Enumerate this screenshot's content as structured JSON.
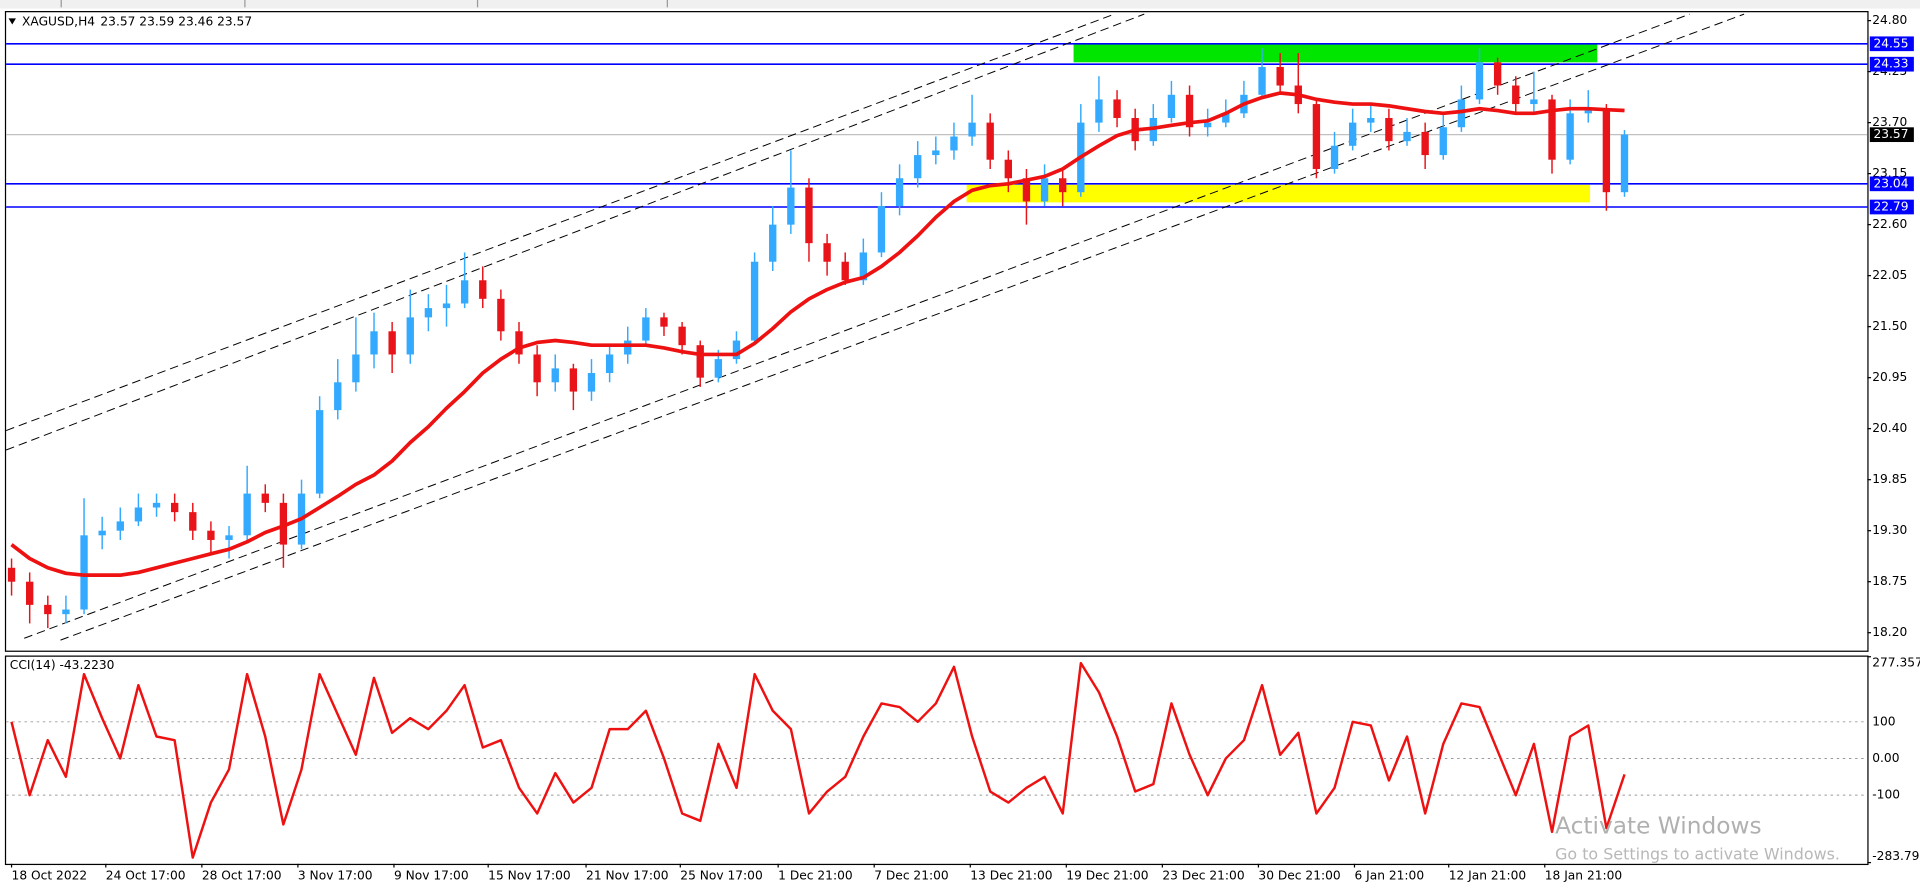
{
  "chart_data": [
    {
      "type": "candlestick",
      "title": "XAGUSD,H4",
      "subtitle": "23.57 23.59 23.46 23.57",
      "up_color": "#33aaff",
      "down_color": "#e8141a",
      "xlim": [
        -0.3,
        102.4
      ],
      "ylim": [
        18.02,
        24.89
      ],
      "yticks": [
        {
          "value": 24.8,
          "label": "24.80"
        },
        24.25,
        {
          "value": 23.7,
          "label": "23.70"
        },
        23.15,
        {
          "value": 22.6,
          "label": "22.60"
        },
        22.05,
        {
          "value": 21.5,
          "label": "21.50"
        },
        20.95,
        {
          "value": 20.4,
          "label": "20.40"
        },
        19.85,
        {
          "value": 19.3,
          "label": "19.30"
        },
        18.75,
        {
          "value": 18.2,
          "label": "18.20"
        }
      ],
      "open": [
        18.9,
        18.75,
        18.5,
        18.4,
        18.45,
        19.25,
        19.3,
        19.4,
        19.55,
        19.6,
        19.5,
        19.3,
        19.2,
        19.25,
        19.7,
        19.6,
        19.15,
        19.7,
        20.6,
        20.9,
        21.2,
        21.45,
        21.2,
        21.6,
        21.7,
        21.75,
        22.0,
        21.8,
        21.45,
        21.2,
        20.9,
        21.05,
        20.8,
        21.0,
        21.2,
        21.35,
        21.6,
        21.5,
        21.3,
        20.95,
        21.15,
        21.35,
        22.2,
        22.6,
        23.0,
        22.4,
        22.2,
        22.0,
        22.3,
        22.8,
        23.1,
        23.35,
        23.4,
        23.55,
        23.7,
        23.3,
        23.1,
        22.85,
        23.1,
        22.95,
        23.7,
        23.95,
        23.75,
        23.5,
        23.75,
        24.0,
        23.65,
        23.7,
        23.8,
        24.0,
        24.3,
        24.1,
        23.9,
        23.2,
        23.45,
        23.7,
        23.75,
        23.5,
        23.6,
        23.35,
        23.65,
        23.95,
        24.35,
        24.1,
        23.9,
        23.95,
        23.3,
        23.8,
        23.85,
        22.95
      ],
      "high": [
        19.0,
        18.85,
        18.6,
        18.6,
        19.65,
        19.45,
        19.55,
        19.7,
        19.7,
        19.7,
        19.6,
        19.4,
        19.35,
        20.0,
        19.8,
        19.7,
        19.85,
        20.75,
        21.15,
        21.6,
        21.65,
        21.55,
        21.9,
        21.85,
        21.95,
        22.3,
        22.15,
        21.9,
        21.55,
        21.3,
        21.2,
        21.1,
        21.15,
        21.3,
        21.5,
        21.7,
        21.65,
        21.55,
        21.35,
        21.25,
        21.45,
        22.3,
        22.8,
        23.4,
        23.1,
        22.5,
        22.3,
        22.45,
        22.95,
        23.25,
        23.5,
        23.55,
        23.7,
        24.0,
        23.8,
        23.4,
        23.2,
        23.25,
        23.2,
        23.9,
        24.2,
        24.05,
        23.85,
        23.9,
        24.15,
        24.1,
        23.85,
        23.95,
        24.15,
        24.5,
        24.45,
        24.45,
        23.95,
        23.6,
        23.85,
        23.9,
        23.85,
        23.75,
        23.7,
        23.8,
        24.1,
        24.5,
        24.4,
        24.2,
        24.25,
        24.0,
        23.95,
        24.05,
        23.9,
        23.62
      ],
      "low": [
        18.6,
        18.3,
        18.25,
        18.3,
        18.4,
        19.1,
        19.2,
        19.35,
        19.45,
        19.4,
        19.2,
        19.05,
        19.0,
        19.2,
        19.5,
        18.9,
        19.1,
        19.65,
        20.5,
        20.8,
        21.05,
        21.0,
        21.1,
        21.45,
        21.5,
        21.7,
        21.7,
        21.35,
        21.1,
        20.75,
        20.8,
        20.6,
        20.7,
        20.9,
        21.1,
        21.3,
        21.4,
        21.2,
        20.85,
        20.9,
        21.1,
        21.3,
        22.1,
        22.5,
        22.2,
        22.05,
        21.95,
        21.95,
        22.25,
        22.7,
        23.0,
        23.25,
        23.3,
        23.45,
        23.2,
        22.95,
        22.6,
        22.8,
        22.8,
        22.9,
        23.6,
        23.65,
        23.4,
        23.45,
        23.7,
        23.55,
        23.55,
        23.65,
        23.75,
        23.95,
        24.0,
        23.8,
        23.1,
        23.15,
        23.4,
        23.6,
        23.4,
        23.45,
        23.2,
        23.3,
        23.6,
        23.9,
        24.0,
        23.8,
        23.8,
        23.15,
        23.25,
        23.7,
        22.75,
        22.9
      ],
      "close": [
        18.75,
        18.5,
        18.4,
        18.45,
        19.25,
        19.3,
        19.4,
        19.55,
        19.6,
        19.5,
        19.3,
        19.2,
        19.25,
        19.7,
        19.6,
        19.15,
        19.7,
        20.6,
        20.9,
        21.2,
        21.45,
        21.2,
        21.6,
        21.7,
        21.75,
        22.0,
        21.8,
        21.45,
        21.2,
        20.9,
        21.05,
        20.8,
        21.0,
        21.2,
        21.35,
        21.6,
        21.5,
        21.3,
        20.95,
        21.15,
        21.35,
        22.2,
        22.6,
        23.0,
        22.4,
        22.2,
        22.0,
        22.3,
        22.8,
        23.1,
        23.35,
        23.4,
        23.55,
        23.7,
        23.3,
        23.1,
        22.85,
        23.1,
        22.95,
        23.7,
        23.95,
        23.75,
        23.5,
        23.75,
        24.0,
        23.65,
        23.7,
        23.8,
        24.0,
        24.3,
        24.1,
        23.9,
        23.2,
        23.45,
        23.7,
        23.75,
        23.5,
        23.6,
        23.35,
        23.65,
        23.95,
        24.35,
        24.1,
        23.9,
        23.95,
        23.3,
        23.8,
        23.85,
        22.95,
        23.57
      ],
      "ma": {
        "color": "#ee1111",
        "values": [
          19.15,
          19.0,
          18.9,
          18.84,
          18.82,
          18.82,
          18.82,
          18.85,
          18.9,
          18.95,
          19.0,
          19.05,
          19.1,
          19.18,
          19.28,
          19.35,
          19.43,
          19.55,
          19.67,
          19.8,
          19.9,
          20.05,
          20.25,
          20.42,
          20.62,
          20.8,
          21.0,
          21.15,
          21.27,
          21.33,
          21.35,
          21.33,
          21.3,
          21.3,
          21.3,
          21.3,
          21.27,
          21.23,
          21.2,
          21.2,
          21.2,
          21.32,
          21.48,
          21.66,
          21.8,
          21.9,
          21.98,
          22.03,
          22.15,
          22.3,
          22.48,
          22.68,
          22.85,
          22.97,
          23.02,
          23.04,
          23.08,
          23.12,
          23.2,
          23.33,
          23.45,
          23.56,
          23.62,
          23.64,
          23.67,
          23.7,
          23.72,
          23.8,
          23.9,
          23.97,
          24.02,
          24.0,
          23.95,
          23.92,
          23.9,
          23.9,
          23.88,
          23.85,
          23.82,
          23.8,
          23.82,
          23.85,
          23.83,
          23.8,
          23.8,
          23.83,
          23.85,
          23.85,
          23.84,
          23.83
        ]
      },
      "hlines": [
        {
          "value": 24.55,
          "color": "#0000ff"
        },
        {
          "value": 24.33,
          "color": "#0000ff"
        },
        {
          "value": 23.04,
          "color": "#0000ff"
        },
        {
          "value": 22.79,
          "color": "#0000ff"
        }
      ],
      "current_price": {
        "value": 23.57,
        "color": "#000000"
      },
      "trendlines": [
        {
          "x": [
            -0.3,
            60.85
          ],
          "y": [
            20.38,
            24.87
          ]
        },
        {
          "x": [
            -0.3,
            62.5
          ],
          "y": [
            20.17,
            24.87
          ]
        },
        {
          "x": [
            0.7,
            92.6
          ],
          "y": [
            18.14,
            24.87
          ]
        },
        {
          "x": [
            2.7,
            95.6
          ],
          "y": [
            18.12,
            24.87
          ]
        }
      ],
      "zones": [
        {
          "x": [
            58.6,
            87.5
          ],
          "y": [
            24.35,
            24.55
          ],
          "color": "#00e600"
        },
        {
          "x": [
            52.7,
            87.1
          ],
          "y": [
            22.84,
            23.03
          ],
          "color": "#ffff00"
        }
      ]
    },
    {
      "type": "line",
      "title": "CCI(14) -43.2230",
      "color": "#ee1111",
      "xlim": [
        -0.3,
        102.4
      ],
      "ylim": [
        -283.796,
        277.357
      ],
      "yticks": [
        277.357,
        100,
        {
          "value": 0,
          "label": "0.00"
        },
        -100,
        -283.796
      ],
      "xticks": [
        {
          "value": 0,
          "label": "18 Oct 2022"
        },
        {
          "value": 5.2,
          "label": "24 Oct 17:00"
        },
        {
          "value": 10.5,
          "label": "28 Oct 17:00"
        },
        {
          "value": 15.8,
          "label": "3 Nov 17:00"
        },
        {
          "value": 21.1,
          "label": "9 Nov 17:00"
        },
        {
          "value": 26.3,
          "label": "15 Nov 17:00"
        },
        {
          "value": 31.7,
          "label": "21 Nov 17:00"
        },
        {
          "value": 36.9,
          "label": "25 Nov 17:00"
        },
        {
          "value": 42.3,
          "label": "1 Dec 21:00"
        },
        {
          "value": 47.6,
          "label": "7 Dec 21:00"
        },
        {
          "value": 52.9,
          "label": "13 Dec 21:00"
        },
        {
          "value": 58.2,
          "label": "19 Dec 21:00"
        },
        {
          "value": 63.5,
          "label": "23 Dec 21:00"
        },
        {
          "value": 68.8,
          "label": "30 Dec 21:00"
        },
        {
          "value": 74.1,
          "label": "6 Jan 21:00"
        },
        {
          "value": 79.3,
          "label": "12 Jan 21:00"
        },
        {
          "value": 84.6,
          "label": "18 Jan 21:00"
        }
      ],
      "values": [
        100,
        -100,
        50,
        -50,
        230,
        110,
        0,
        200,
        60,
        50,
        -270,
        -120,
        -30,
        230,
        60,
        -180,
        -30,
        230,
        120,
        10,
        220,
        70,
        110,
        80,
        130,
        200,
        30,
        50,
        -80,
        -150,
        -40,
        -120,
        -80,
        80,
        80,
        130,
        0,
        -150,
        -170,
        40,
        -80,
        230,
        130,
        80,
        -150,
        -90,
        -50,
        60,
        150,
        140,
        100,
        150,
        250,
        60,
        -90,
        -120,
        -80,
        -50,
        -150,
        260,
        180,
        60,
        -90,
        -70,
        150,
        10,
        -100,
        0,
        50,
        200,
        10,
        70,
        -150,
        -80,
        100,
        90,
        -60,
        60,
        -150,
        40,
        150,
        140,
        20,
        -100,
        40,
        -200,
        60,
        90,
        -190,
        -43.223
      ]
    }
  ],
  "watermark": {
    "title": "Activate Windows",
    "subtitle": "Go to Settings to activate Windows."
  }
}
